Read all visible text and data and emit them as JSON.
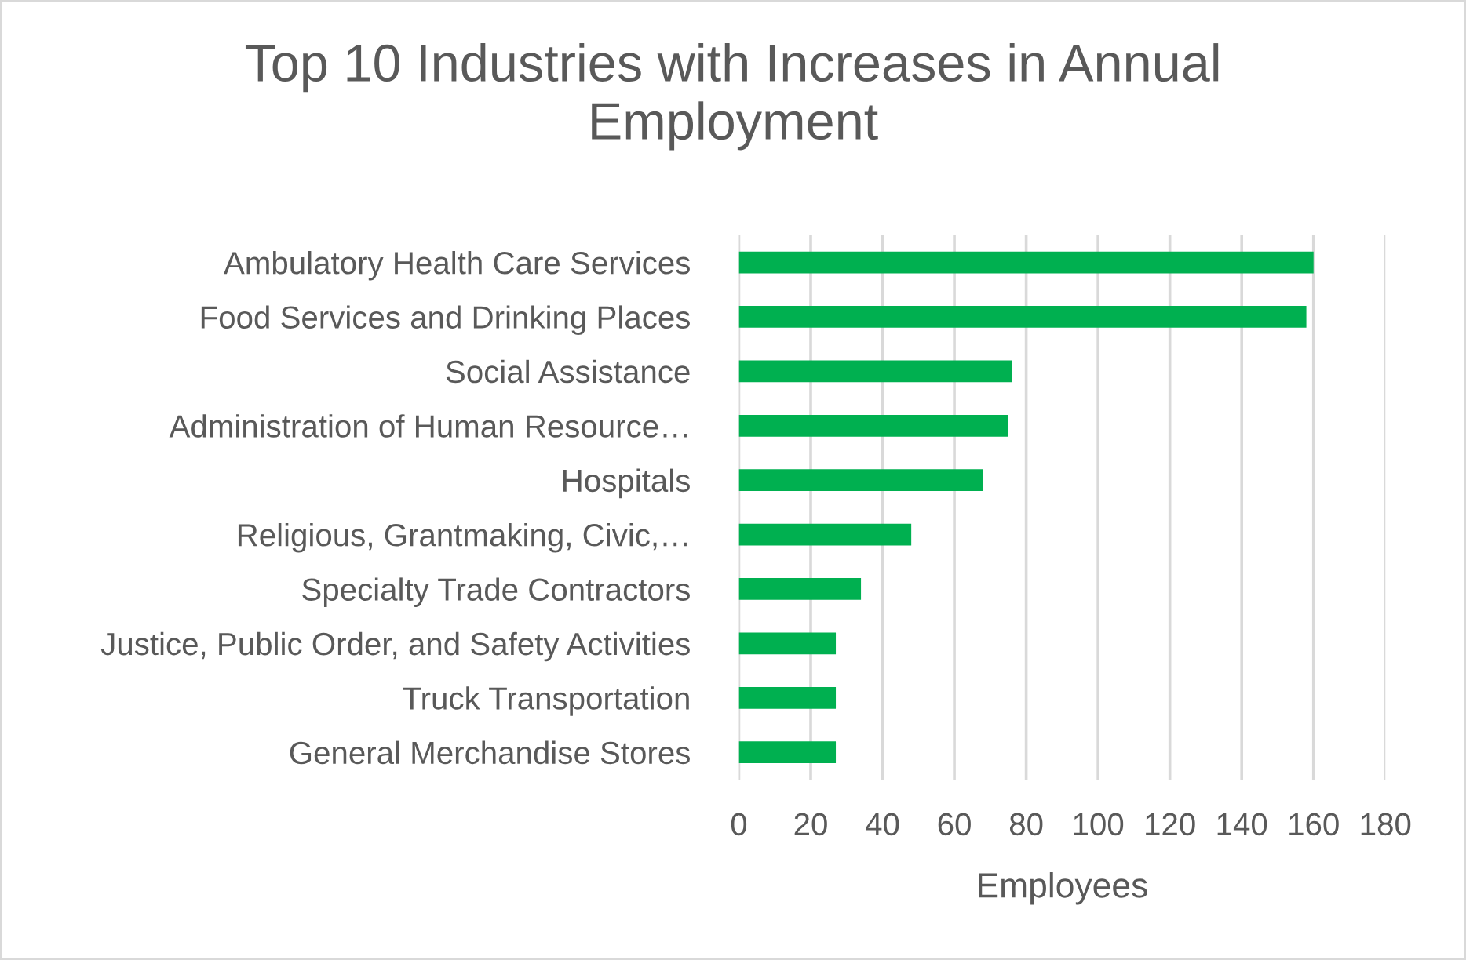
{
  "chart_data": {
    "type": "bar",
    "orientation": "horizontal",
    "title": "Top 10 Industries with Increases in Annual Employment",
    "xlabel": "Employees",
    "categories": [
      "Ambulatory Health Care Services",
      "Food Services and Drinking Places",
      "Social Assistance",
      "Administration of Human Resource…",
      "Hospitals",
      "Religious, Grantmaking, Civic,…",
      "Specialty Trade Contractors",
      "Justice, Public Order, and Safety Activities",
      "Truck Transportation",
      "General Merchandise Stores"
    ],
    "values": [
      160,
      158,
      76,
      75,
      68,
      48,
      34,
      27,
      27,
      27
    ],
    "color": "#00b050",
    "xlim": [
      0,
      180
    ],
    "xticks": [
      0,
      20,
      40,
      60,
      80,
      100,
      120,
      140,
      160,
      180
    ],
    "grid": "x"
  }
}
